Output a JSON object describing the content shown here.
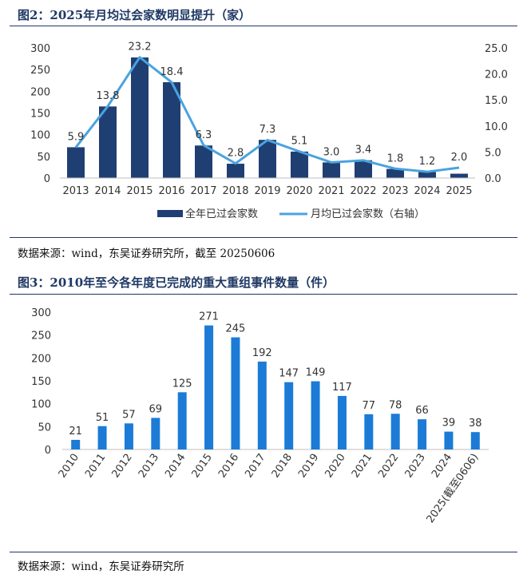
{
  "figure2": {
    "title": "图2：2025年月均过会家数明显提升（家）",
    "source": "数据来源：wind，东吴证券研究所，截至 20250606"
  },
  "figure3": {
    "title": "图3：2010年至今各年度已完成的重大重组事件数量（件）",
    "source": "数据来源：wind，东吴证券研究所"
  },
  "colors": {
    "bar_dark": "#1f3f73",
    "line_light": "#4aa3df",
    "bar_blue": "#1c7bd6",
    "rule": "#1f3864"
  },
  "chart_data": [
    {
      "type": "bar+line",
      "categories": [
        "2013",
        "2014",
        "2015",
        "2016",
        "2017",
        "2018",
        "2019",
        "2020",
        "2021",
        "2022",
        "2023",
        "2024",
        "2025"
      ],
      "series": [
        {
          "name": "全年已过会家数",
          "type": "bar",
          "axis": "left",
          "values": [
            71,
            165,
            278,
            221,
            75,
            33,
            88,
            61,
            36,
            41,
            21,
            14,
            10
          ]
        },
        {
          "name": "月均已过会家数（右轴）",
          "type": "line",
          "axis": "right",
          "values": [
            5.9,
            13.8,
            23.2,
            18.4,
            6.3,
            2.8,
            7.3,
            5.1,
            3.0,
            3.4,
            1.8,
            1.2,
            2.0
          ],
          "labels": [
            "5.9",
            "13.8",
            "23.2",
            "18.4",
            "6.3",
            "2.8",
            "7.3",
            "5.1",
            "3.0",
            "3.4",
            "1.8",
            "1.2",
            "2.0"
          ]
        }
      ],
      "left_ticks": [
        "0",
        "50",
        "100",
        "150",
        "200",
        "250",
        "300"
      ],
      "right_ticks": [
        "0.0",
        "5.0",
        "10.0",
        "15.0",
        "20.0",
        "25.0"
      ],
      "ylim_left": [
        0,
        300
      ],
      "ylim_right": [
        0,
        25
      ],
      "legend_position": "bottom"
    },
    {
      "type": "bar",
      "categories": [
        "2010",
        "2011",
        "2012",
        "2013",
        "2014",
        "2015",
        "2016",
        "2017",
        "2018",
        "2019",
        "2020",
        "2021",
        "2022",
        "2023",
        "2024",
        "2025(截至0606)"
      ],
      "values": [
        21,
        51,
        57,
        69,
        125,
        271,
        245,
        192,
        147,
        149,
        117,
        77,
        78,
        66,
        39,
        38
      ],
      "labels": [
        "21",
        "51",
        "57",
        "69",
        "125",
        "271",
        "245",
        "192",
        "147",
        "149",
        "117",
        "77",
        "78",
        "66",
        "39",
        "38"
      ],
      "y_ticks": [
        "0",
        "50",
        "100",
        "150",
        "200",
        "250",
        "300"
      ],
      "ylim": [
        0,
        300
      ],
      "grid": false
    }
  ]
}
